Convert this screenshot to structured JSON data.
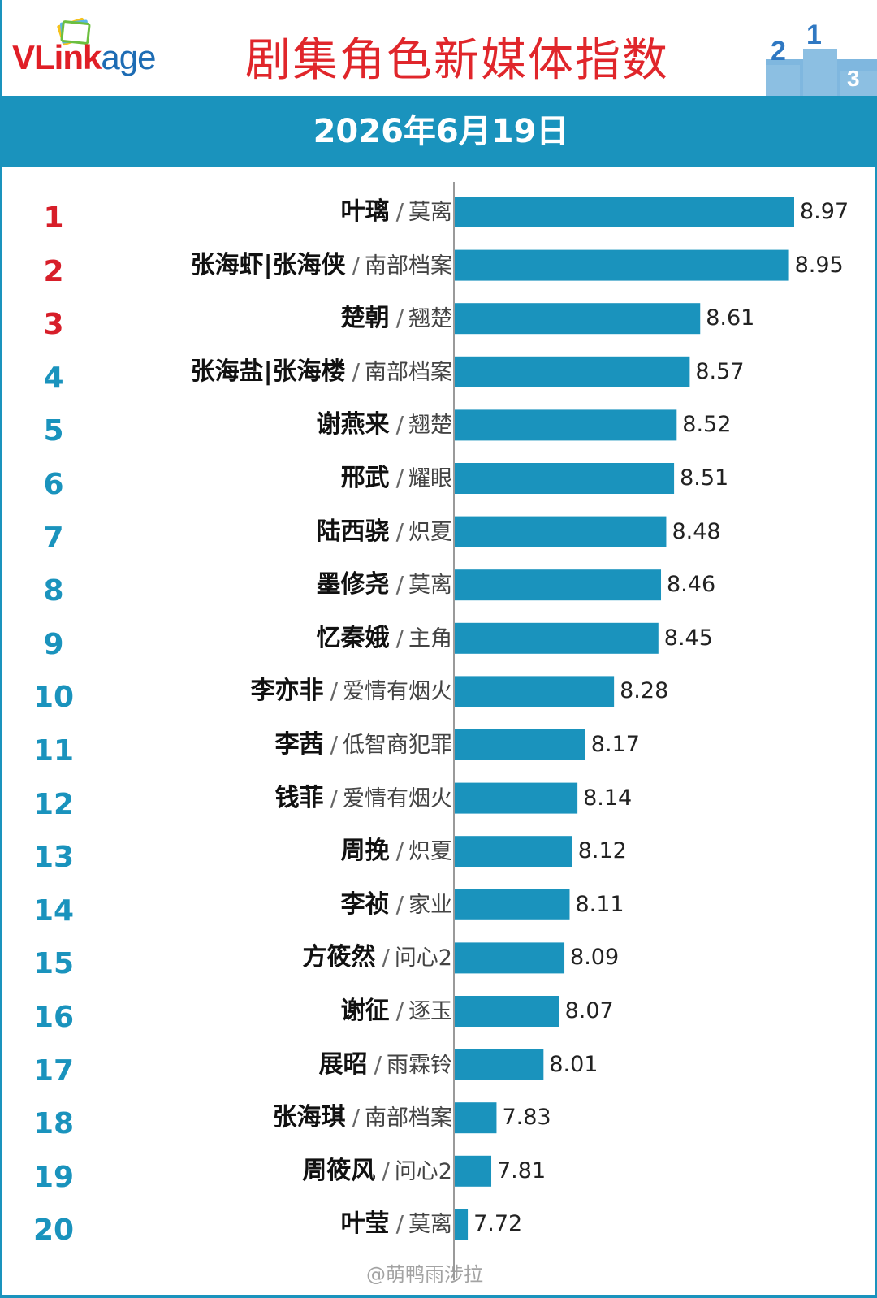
{
  "header": {
    "logo_text_1": "VLink",
    "logo_text_2": "age",
    "title": "剧集角色新媒体指数",
    "date": "2026年6月19日"
  },
  "colors": {
    "bar": "#1a93bd",
    "rank_top3": "#d71e29",
    "rank_other": "#1a93bd",
    "title": "#e0262b"
  },
  "watermark": "@萌鸭雨涉拉",
  "chart_data": {
    "type": "bar",
    "orientation": "horizontal",
    "title": "剧集角色新媒体指数",
    "xlim": [
      7.67,
      8.97
    ],
    "grid": false,
    "categories": [
      "叶璃 / 莫离",
      "张海虾|张海侠 / 南部档案",
      "楚朝 / 翘楚",
      "张海盐|张海楼 / 南部档案",
      "谢燕来 / 翘楚",
      "邢武 / 耀眼",
      "陆西骁 / 炽夏",
      "墨修尧 / 莫离",
      "忆秦娥 / 主角",
      "李亦非 / 爱情有烟火",
      "李茜 / 低智商犯罪",
      "钱菲 / 爱情有烟火",
      "周挽 / 炽夏",
      "李祯 / 家业",
      "方筱然 / 问心2",
      "谢征 / 逐玉",
      "展昭 / 雨霖铃",
      "张海琪 / 南部档案",
      "周筱风 / 问心2",
      "叶莹 / 莫离"
    ],
    "values": [
      8.97,
      8.95,
      8.61,
      8.57,
      8.52,
      8.51,
      8.48,
      8.46,
      8.45,
      8.28,
      8.17,
      8.14,
      8.12,
      8.11,
      8.09,
      8.07,
      8.01,
      7.83,
      7.81,
      7.72
    ],
    "rows": [
      {
        "rank": "1",
        "character": "叶璃",
        "drama": "莫离",
        "value": 8.97,
        "value_label": "8.97"
      },
      {
        "rank": "2",
        "character": "张海虾|张海侠",
        "drama": "南部档案",
        "value": 8.95,
        "value_label": "8.95"
      },
      {
        "rank": "3",
        "character": "楚朝",
        "drama": "翘楚",
        "value": 8.61,
        "value_label": "8.61"
      },
      {
        "rank": "4",
        "character": "张海盐|张海楼",
        "drama": "南部档案",
        "value": 8.57,
        "value_label": "8.57"
      },
      {
        "rank": "5",
        "character": "谢燕来",
        "drama": "翘楚",
        "value": 8.52,
        "value_label": "8.52"
      },
      {
        "rank": "6",
        "character": "邢武",
        "drama": "耀眼",
        "value": 8.51,
        "value_label": "8.51"
      },
      {
        "rank": "7",
        "character": "陆西骁",
        "drama": "炽夏",
        "value": 8.48,
        "value_label": "8.48"
      },
      {
        "rank": "8",
        "character": "墨修尧",
        "drama": "莫离",
        "value": 8.46,
        "value_label": "8.46"
      },
      {
        "rank": "9",
        "character": "忆秦娥",
        "drama": "主角",
        "value": 8.45,
        "value_label": "8.45"
      },
      {
        "rank": "10",
        "character": "李亦非",
        "drama": "爱情有烟火",
        "value": 8.28,
        "value_label": "8.28"
      },
      {
        "rank": "11",
        "character": "李茜",
        "drama": "低智商犯罪",
        "value": 8.17,
        "value_label": "8.17"
      },
      {
        "rank": "12",
        "character": "钱菲",
        "drama": "爱情有烟火",
        "value": 8.14,
        "value_label": "8.14"
      },
      {
        "rank": "13",
        "character": "周挽",
        "drama": "炽夏",
        "value": 8.12,
        "value_label": "8.12"
      },
      {
        "rank": "14",
        "character": "李祯",
        "drama": "家业",
        "value": 8.11,
        "value_label": "8.11"
      },
      {
        "rank": "15",
        "character": "方筱然",
        "drama": "问心2",
        "value": 8.09,
        "value_label": "8.09"
      },
      {
        "rank": "16",
        "character": "谢征",
        "drama": "逐玉",
        "value": 8.07,
        "value_label": "8.07"
      },
      {
        "rank": "17",
        "character": "展昭",
        "drama": "雨霖铃",
        "value": 8.01,
        "value_label": "8.01"
      },
      {
        "rank": "18",
        "character": "张海琪",
        "drama": "南部档案",
        "value": 7.83,
        "value_label": "7.83"
      },
      {
        "rank": "19",
        "character": "周筱风",
        "drama": "问心2",
        "value": 7.81,
        "value_label": "7.81"
      },
      {
        "rank": "20",
        "character": "叶莹",
        "drama": "莫离",
        "value": 7.72,
        "value_label": "7.72"
      }
    ]
  }
}
